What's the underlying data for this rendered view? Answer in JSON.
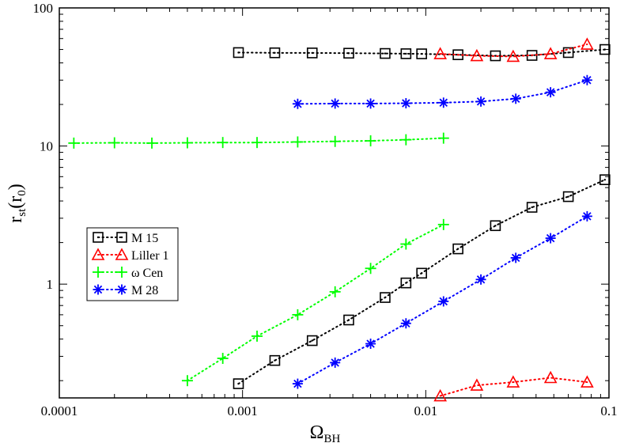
{
  "chart_data": {
    "type": "scatter",
    "title": "",
    "xlabel": {
      "main": "Ω",
      "sub": "BH"
    },
    "ylabel": {
      "main": "r",
      "sub": "st",
      "rest": "(r",
      "sub2": "0",
      "end": ")"
    },
    "xscale": "log",
    "yscale": "log",
    "xlim": [
      0.0001,
      0.1
    ],
    "ylim": [
      0.15,
      100
    ],
    "grid": false,
    "legend_position": "middle-left",
    "x_ticks": [
      {
        "value": 0.0001,
        "label": "0.0001"
      },
      {
        "value": 0.001,
        "label": "0.001"
      },
      {
        "value": 0.01,
        "label": "0.01"
      },
      {
        "value": 0.1,
        "label": "0.1"
      }
    ],
    "y_ticks": [
      {
        "value": 1,
        "label": "1"
      },
      {
        "value": 10,
        "label": "10"
      },
      {
        "value": 100,
        "label": "100"
      }
    ],
    "series": [
      {
        "name": "M 15",
        "color": "#000000",
        "marker": "square",
        "branches": [
          {
            "x": [
              0.00095,
              0.0015,
              0.0024,
              0.0038,
              0.006,
              0.0078,
              0.0095,
              0.015,
              0.024,
              0.038,
              0.06,
              0.095
            ],
            "y": [
              47.5,
              47.3,
              47.2,
              47.0,
              46.8,
              46.6,
              46.5,
              45.8,
              45.0,
              45.3,
              47.5,
              50.0
            ]
          },
          {
            "x": [
              0.00095,
              0.0015,
              0.0024,
              0.0038,
              0.006,
              0.0078,
              0.0095,
              0.015,
              0.024,
              0.038,
              0.06,
              0.095
            ],
            "y": [
              0.19,
              0.28,
              0.39,
              0.55,
              0.8,
              1.02,
              1.2,
              1.8,
              2.65,
              3.6,
              4.3,
              5.7
            ]
          }
        ]
      },
      {
        "name": "Liller 1",
        "color": "#ff0000",
        "marker": "triangle",
        "branches": [
          {
            "x": [
              0.012,
              0.019,
              0.03,
              0.048,
              0.076
            ],
            "y": [
              46.5,
              45.0,
              44.5,
              46.5,
              54.5
            ]
          },
          {
            "x": [
              0.012,
              0.019,
              0.03,
              0.048,
              0.076
            ],
            "y": [
              0.155,
              0.185,
              0.195,
              0.21,
              0.195
            ]
          }
        ]
      },
      {
        "name": "ω Cen",
        "color": "#00ff00",
        "marker": "plus",
        "branches": [
          {
            "x": [
              0.00012,
              0.0002,
              0.00032,
              0.0005,
              0.00078,
              0.0012,
              0.002,
              0.0032,
              0.005,
              0.0078,
              0.0125
            ],
            "y": [
              10.5,
              10.55,
              10.5,
              10.55,
              10.6,
              10.6,
              10.7,
              10.8,
              10.9,
              11.1,
              11.4
            ]
          },
          {
            "x": [
              0.0005,
              0.00078,
              0.0012,
              0.002,
              0.0032,
              0.005,
              0.0078,
              0.0125
            ],
            "y": [
              0.2,
              0.29,
              0.42,
              0.6,
              0.88,
              1.3,
              1.95,
              2.7
            ]
          }
        ]
      },
      {
        "name": "M 28",
        "color": "#0000ff",
        "marker": "asterisk",
        "branches": [
          {
            "x": [
              0.002,
              0.0032,
              0.005,
              0.0078,
              0.0125,
              0.02,
              0.031,
              0.048,
              0.076
            ],
            "y": [
              20.2,
              20.3,
              20.3,
              20.4,
              20.6,
              21.0,
              22.0,
              24.5,
              30.0
            ]
          },
          {
            "x": [
              0.002,
              0.0032,
              0.005,
              0.0078,
              0.0125,
              0.02,
              0.031,
              0.048,
              0.076
            ],
            "y": [
              0.19,
              0.27,
              0.37,
              0.52,
              0.75,
              1.08,
              1.55,
              2.15,
              3.1
            ]
          }
        ]
      }
    ]
  }
}
